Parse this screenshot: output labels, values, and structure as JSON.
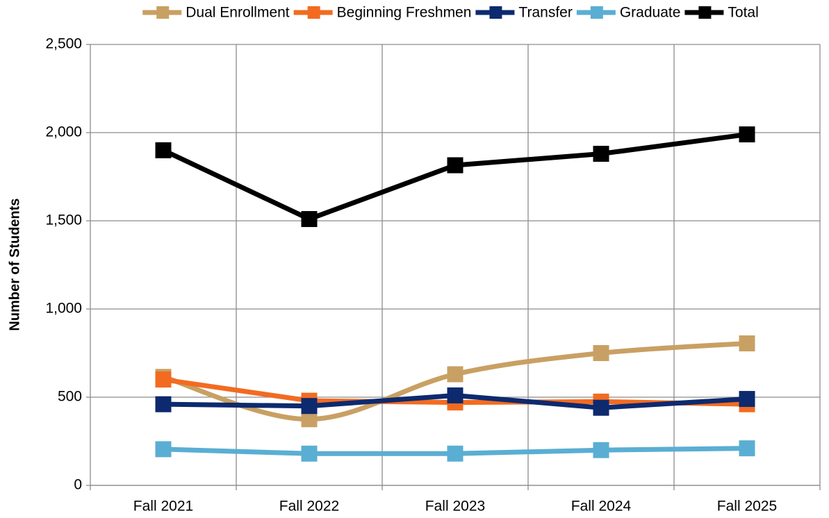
{
  "chart_data": {
    "type": "line",
    "y_label": "Number of Students",
    "categories": [
      "Fall 2021",
      "Fall 2022",
      "Fall 2023",
      "Fall 2024",
      "Fall 2025"
    ],
    "series": [
      {
        "name": "Dual Enrollment",
        "color": "#c9a063",
        "smooth": true,
        "values": [
          615,
          375,
          630,
          750,
          805
        ]
      },
      {
        "name": "Beginning Freshmen",
        "color": "#f26b21",
        "smooth": false,
        "values": [
          600,
          480,
          470,
          475,
          460
        ]
      },
      {
        "name": "Transfer",
        "color": "#0d2a6e",
        "smooth": false,
        "values": [
          460,
          450,
          510,
          440,
          490
        ]
      },
      {
        "name": "Graduate",
        "color": "#5aaed3",
        "smooth": false,
        "values": [
          205,
          180,
          180,
          200,
          210
        ]
      },
      {
        "name": "Total",
        "color": "#000000",
        "smooth": false,
        "values": [
          1900,
          1510,
          1815,
          1880,
          1990
        ]
      }
    ],
    "ylim": [
      0,
      2500
    ],
    "yticks": [
      0,
      500,
      {
        "value": 1000,
        "label": "1,000"
      },
      {
        "value": 1500,
        "label": "1,500"
      },
      {
        "value": 2000,
        "label": "2,000"
      },
      {
        "value": 2500,
        "label": "2,500"
      }
    ],
    "grid": true,
    "legend": "top"
  }
}
